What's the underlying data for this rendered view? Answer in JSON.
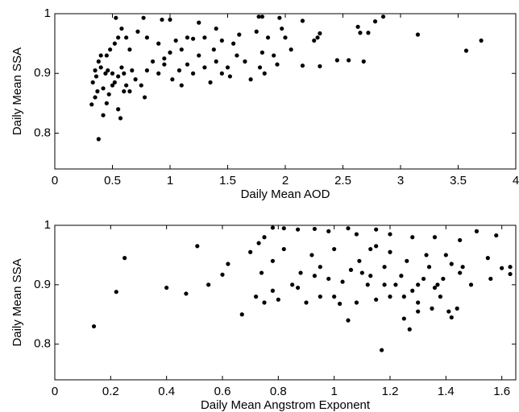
{
  "chart_data": [
    {
      "type": "scatter",
      "x_label": "Daily Mean AOD",
      "y_label": "Daily Mean SSA",
      "color": "#000000",
      "xlim": [
        0,
        4
      ],
      "xticks": [
        0,
        0.5,
        1,
        1.5,
        2,
        2.5,
        3,
        3.5,
        4
      ],
      "ylim": [
        0.74,
        1
      ],
      "yticks": [
        0.8,
        0.9,
        1
      ],
      "x": [
        0.53,
        0.77,
        0.93,
        1.0,
        1.25,
        1.77,
        1.8,
        1.95,
        2.15,
        2.85,
        2.78,
        2.63,
        2.65,
        2.72,
        3.15,
        3.7,
        3.57,
        2.45,
        2.55,
        2.68,
        2.3,
        2.15,
        2.25,
        2.28,
        2.3,
        2.0,
        1.97,
        1.85,
        1.75,
        1.6,
        1.55,
        1.45,
        1.38,
        1.3,
        1.2,
        1.1,
        1.0,
        0.9,
        0.8,
        0.72,
        0.65,
        0.62,
        0.58,
        0.55,
        0.52,
        0.48,
        0.45,
        0.4,
        0.38,
        0.35,
        0.33,
        0.32,
        0.35,
        0.37,
        0.38,
        0.42,
        0.45,
        0.47,
        0.5,
        0.52,
        0.55,
        0.57,
        0.6,
        0.62,
        0.65,
        0.7,
        0.75,
        0.78,
        0.8,
        0.85,
        0.9,
        0.95,
        1.02,
        1.08,
        1.1,
        1.15,
        1.2,
        1.25,
        1.3,
        1.35,
        1.4,
        1.45,
        1.5,
        1.58,
        1.65,
        1.7,
        1.78,
        1.8,
        1.9,
        1.93,
        2.05,
        1.82,
        1.52,
        0.44,
        0.46,
        0.5,
        0.55,
        0.58,
        0.4,
        0.36,
        0.42,
        0.6,
        0.67,
        1.15,
        1.4,
        1.05,
        0.95
      ],
      "values": [
        0.993,
        0.993,
        0.99,
        0.99,
        0.985,
        0.995,
        0.995,
        0.993,
        0.988,
        0.995,
        0.987,
        0.978,
        0.968,
        0.968,
        0.965,
        0.955,
        0.938,
        0.922,
        0.922,
        0.92,
        0.912,
        0.913,
        0.955,
        0.96,
        0.967,
        0.96,
        0.975,
        0.96,
        0.97,
        0.965,
        0.95,
        0.955,
        0.94,
        0.96,
        0.958,
        0.94,
        0.935,
        0.95,
        0.96,
        0.97,
        0.94,
        0.96,
        0.975,
        0.96,
        0.95,
        0.94,
        0.93,
        0.93,
        0.92,
        0.905,
        0.885,
        0.848,
        0.86,
        0.87,
        0.79,
        0.83,
        0.85,
        0.865,
        0.9,
        0.885,
        0.84,
        0.825,
        0.9,
        0.88,
        0.87,
        0.89,
        0.88,
        0.86,
        0.905,
        0.92,
        0.9,
        0.925,
        0.89,
        0.905,
        0.88,
        0.915,
        0.9,
        0.93,
        0.91,
        0.885,
        0.92,
        0.9,
        0.91,
        0.93,
        0.92,
        0.89,
        0.91,
        0.935,
        0.93,
        0.915,
        0.94,
        0.9,
        0.895,
        0.9,
        0.905,
        0.88,
        0.895,
        0.91,
        0.91,
        0.895,
        0.875,
        0.87,
        0.905,
        0.96,
        0.975,
        0.955,
        0.915
      ]
    },
    {
      "type": "scatter",
      "x_label": "Daily Mean Angstrom Exponent",
      "y_label": "Daily Mean SSA",
      "color": "#000000",
      "xlim": [
        0,
        1.65
      ],
      "xticks": [
        0,
        0.2,
        0.4,
        0.6,
        0.8,
        1,
        1.2,
        1.4,
        1.6
      ],
      "ylim": [
        0.74,
        1
      ],
      "yticks": [
        0.8,
        0.9,
        1
      ],
      "x": [
        0.14,
        0.22,
        0.25,
        0.4,
        0.47,
        0.51,
        0.55,
        0.6,
        0.62,
        0.67,
        0.7,
        0.73,
        0.75,
        0.78,
        0.82,
        0.87,
        0.93,
        0.98,
        1.05,
        1.08,
        1.15,
        1.2,
        1.28,
        1.36,
        1.45,
        1.51,
        1.58,
        1.55,
        1.6,
        1.63,
        1.63,
        1.56,
        1.49,
        1.45,
        1.42,
        1.4,
        1.38,
        1.35,
        1.3,
        1.28,
        1.27,
        1.25,
        1.2,
        1.17,
        1.15,
        1.12,
        1.1,
        1.08,
        1.05,
        1.02,
        1.0,
        0.98,
        0.95,
        0.92,
        0.9,
        0.87,
        0.85,
        0.8,
        0.78,
        0.75,
        0.74,
        0.72,
        0.78,
        0.82,
        0.88,
        0.93,
        1.03,
        1.06,
        1.09,
        1.13,
        1.18,
        1.22,
        1.24,
        1.26,
        1.3,
        1.32,
        1.34,
        1.37,
        1.39,
        1.41,
        1.44,
        1.46,
        1.2,
        1.15,
        1.0,
        1.33,
        1.25,
        1.13,
        1.3,
        1.36,
        0.95,
        1.18,
        1.42
      ],
      "values": [
        0.83,
        0.888,
        0.945,
        0.895,
        0.885,
        0.965,
        0.9,
        0.917,
        0.935,
        0.85,
        0.955,
        0.97,
        0.98,
        0.996,
        0.995,
        0.993,
        0.994,
        0.99,
        0.995,
        0.985,
        0.993,
        0.985,
        0.98,
        0.98,
        0.975,
        0.99,
        0.983,
        0.945,
        0.928,
        0.93,
        0.918,
        0.91,
        0.9,
        0.92,
        0.935,
        0.95,
        0.88,
        0.86,
        0.855,
        0.89,
        0.825,
        0.843,
        0.88,
        0.79,
        0.875,
        0.9,
        0.92,
        0.87,
        0.84,
        0.868,
        0.88,
        0.91,
        0.93,
        0.95,
        0.87,
        0.895,
        0.9,
        0.875,
        0.89,
        0.87,
        0.92,
        0.88,
        0.94,
        0.96,
        0.92,
        0.915,
        0.905,
        0.925,
        0.94,
        0.915,
        0.93,
        0.9,
        0.915,
        0.94,
        0.9,
        0.91,
        0.93,
        0.9,
        0.91,
        0.855,
        0.86,
        0.93,
        0.955,
        0.965,
        0.96,
        0.95,
        0.88,
        0.96,
        0.87,
        0.895,
        0.88,
        0.9,
        0.845
      ]
    }
  ]
}
